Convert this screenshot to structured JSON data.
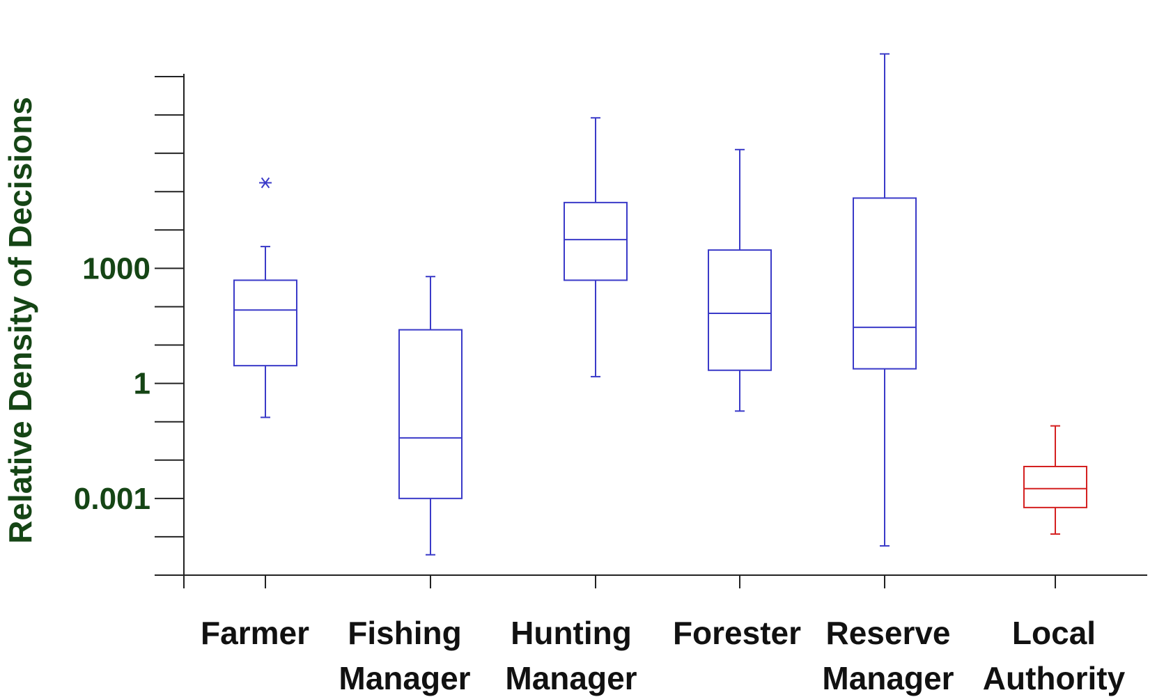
{
  "chart_data": {
    "type": "boxplot",
    "title": "",
    "xlabel": "",
    "ylabel": "Relative Density of Decisions",
    "yscale": "log10",
    "ylim": [
      1e-05,
      100000000
    ],
    "yticks_labeled": [
      {
        "value": 1000,
        "label": "1000"
      },
      {
        "value": 1,
        "label": "1"
      },
      {
        "value": 0.001,
        "label": "0.001"
      }
    ],
    "categories": [
      {
        "lines": [
          "Farmer"
        ]
      },
      {
        "lines": [
          "Fishing",
          "Manager"
        ]
      },
      {
        "lines": [
          "Hunting",
          "Manager"
        ]
      },
      {
        "lines": [
          "Forester"
        ]
      },
      {
        "lines": [
          "Reserve",
          "Manager"
        ]
      },
      {
        "lines": [
          "Local",
          "Authority"
        ]
      }
    ],
    "boxes": [
      {
        "whisker_low": 0.13,
        "q1": 2.9,
        "median": 82,
        "q3": 490,
        "whisker_high": 3700,
        "outliers": [
          170000
        ],
        "color": "#3a3ac8"
      },
      {
        "whisker_low": 3.4e-05,
        "q1": 0.001,
        "median": 0.038,
        "q3": 25,
        "whisker_high": 610,
        "outliers": [],
        "color": "#3a3ac8"
      },
      {
        "whisker_low": 1.5,
        "q1": 490,
        "median": 5600,
        "q3": 52000,
        "whisker_high": 8400000,
        "outliers": [],
        "color": "#3a3ac8"
      },
      {
        "whisker_low": 0.19,
        "q1": 2.2,
        "median": 67,
        "q3": 3000,
        "whisker_high": 1250000,
        "outliers": [],
        "color": "#3a3ac8"
      },
      {
        "whisker_low": 5.8e-05,
        "q1": 2.4,
        "median": 29,
        "q3": 68000,
        "whisker_high": 390000000,
        "outliers": [],
        "color": "#3a3ac8"
      },
      {
        "whisker_low": 0.000118,
        "q1": 0.00058,
        "median": 0.0018,
        "q3": 0.0068,
        "whisker_high": 0.078,
        "outliers": [],
        "color": "#d42020"
      }
    ]
  }
}
